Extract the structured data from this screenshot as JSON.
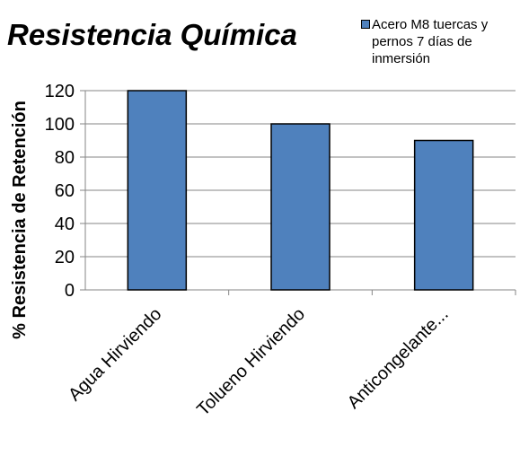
{
  "chart_data": {
    "type": "bar",
    "title": "Resistencia Química",
    "ylabel": "% Resistencia de Retención",
    "xlabel": "",
    "categories": [
      "Agua Hirviendo",
      "Tolueno Hirviendo",
      "Anticongelante..."
    ],
    "series": [
      {
        "name": "Acero M8 tuercas y pernos 7 días de inmersión",
        "values": [
          120,
          100,
          90
        ]
      }
    ],
    "ylim": [
      0,
      120
    ],
    "yticks": [
      0,
      20,
      40,
      60,
      80,
      100,
      120
    ],
    "grid": true,
    "legend_position": "top-right",
    "bar_color": "#4f81bd"
  }
}
